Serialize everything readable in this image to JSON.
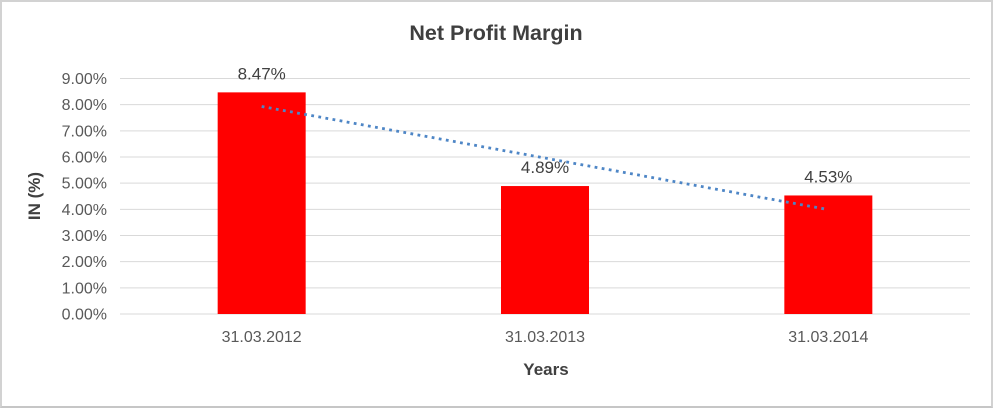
{
  "chart_data": {
    "type": "bar",
    "title": "Net Profit Margin",
    "xlabel": "Years",
    "ylabel": "IN (%)",
    "categories": [
      "31.03.2012",
      "31.03.2013",
      "31.03.2014"
    ],
    "series": [
      {
        "name": "Net Profit Margin",
        "values": [
          8.47,
          4.89,
          4.53
        ]
      }
    ],
    "data_labels": [
      "8.47%",
      "4.89%",
      "4.53%"
    ],
    "ylim": [
      0,
      9
    ],
    "ytick_step": 1,
    "ytick_labels": [
      "0.00%",
      "1.00%",
      "2.00%",
      "3.00%",
      "4.00%",
      "5.00%",
      "6.00%",
      "7.00%",
      "8.00%",
      "9.00%"
    ],
    "grid": true,
    "legend": "none",
    "trendline": {
      "type": "linear",
      "style": "dotted",
      "start_value": 7.93,
      "end_value": 3.99
    },
    "colors": {
      "bar": "#FF0000",
      "trendline": "#4E86C6",
      "title_text": "#3F3F3F",
      "axis_title_text": "#404040",
      "axis_text": "#595959",
      "label_text": "#404040",
      "gridline": "#D9D9D9",
      "border": "#D2D2D2",
      "background": "#FFFFFF"
    }
  }
}
